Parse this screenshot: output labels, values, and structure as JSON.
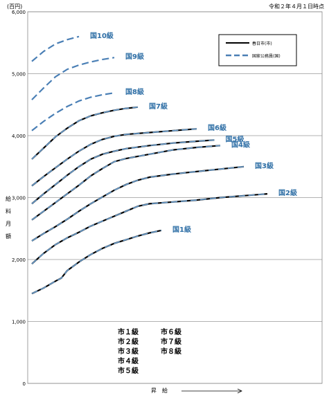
{
  "chart_data": {
    "type": "line",
    "title": "",
    "date_note": "令和２年４月１日時点",
    "unit_label": "(百円)",
    "ylabel_chars": [
      "給",
      "料",
      "月",
      "額"
    ],
    "xlabel": "昇　給",
    "ylim": [
      0,
      6000
    ],
    "yticks": [
      "0",
      "1,000",
      "2,000",
      "3,000",
      "4,000",
      "5,000",
      "6,000"
    ],
    "grid": true,
    "legend": {
      "placement": "top-right",
      "entries": [
        {
          "label": "春日市(市)",
          "style": "solid",
          "color": "#000000"
        },
        {
          "label": "国家公務員(国)",
          "style": "dashed",
          "color": "#4a7fb5"
        }
      ]
    },
    "kasuga_grades_col1": [
      "市１級",
      "市２級",
      "市３級",
      "市４級",
      "市５級"
    ],
    "kasuga_grades_col2": [
      "市６級",
      "市７級",
      "市８級"
    ],
    "series": [
      {
        "name": "国1級",
        "solid": true,
        "points": [
          [
            0,
            1450
          ],
          [
            10,
            1540
          ],
          [
            20,
            1650
          ],
          [
            25,
            1700
          ],
          [
            30,
            1820
          ],
          [
            40,
            1960
          ],
          [
            50,
            2080
          ],
          [
            60,
            2180
          ],
          [
            70,
            2260
          ],
          [
            80,
            2320
          ],
          [
            90,
            2380
          ],
          [
            100,
            2430
          ],
          [
            110,
            2470
          ]
        ]
      },
      {
        "name": "国2級",
        "solid": true,
        "points": [
          [
            0,
            1930
          ],
          [
            10,
            2100
          ],
          [
            20,
            2240
          ],
          [
            30,
            2350
          ],
          [
            40,
            2440
          ],
          [
            50,
            2540
          ],
          [
            60,
            2620
          ],
          [
            70,
            2700
          ],
          [
            80,
            2780
          ],
          [
            90,
            2860
          ],
          [
            100,
            2900
          ],
          [
            120,
            2930
          ],
          [
            140,
            2960
          ],
          [
            160,
            3000
          ],
          [
            180,
            3030
          ],
          [
            200,
            3060
          ]
        ]
      },
      {
        "name": "国3級",
        "solid": true,
        "points": [
          [
            0,
            2300
          ],
          [
            10,
            2420
          ],
          [
            20,
            2530
          ],
          [
            30,
            2650
          ],
          [
            40,
            2780
          ],
          [
            50,
            2900
          ],
          [
            60,
            3010
          ],
          [
            70,
            3120
          ],
          [
            80,
            3210
          ],
          [
            90,
            3280
          ],
          [
            100,
            3330
          ],
          [
            120,
            3380
          ],
          [
            140,
            3420
          ],
          [
            160,
            3460
          ],
          [
            180,
            3500
          ]
        ]
      },
      {
        "name": "国4級",
        "solid": true,
        "points": [
          [
            0,
            2640
          ],
          [
            10,
            2780
          ],
          [
            20,
            2920
          ],
          [
            30,
            3060
          ],
          [
            40,
            3200
          ],
          [
            50,
            3350
          ],
          [
            60,
            3470
          ],
          [
            70,
            3580
          ],
          [
            80,
            3630
          ],
          [
            100,
            3700
          ],
          [
            120,
            3770
          ],
          [
            140,
            3810
          ],
          [
            160,
            3840
          ]
        ]
      },
      {
        "name": "国5級",
        "solid": true,
        "points": [
          [
            0,
            2900
          ],
          [
            10,
            3060
          ],
          [
            20,
            3210
          ],
          [
            30,
            3360
          ],
          [
            40,
            3500
          ],
          [
            50,
            3620
          ],
          [
            60,
            3700
          ],
          [
            70,
            3750
          ],
          [
            80,
            3790
          ],
          [
            100,
            3840
          ],
          [
            120,
            3880
          ],
          [
            140,
            3910
          ],
          [
            155,
            3930
          ]
        ]
      },
      {
        "name": "国6級",
        "solid": true,
        "points": [
          [
            0,
            3190
          ],
          [
            10,
            3340
          ],
          [
            20,
            3480
          ],
          [
            30,
            3620
          ],
          [
            40,
            3750
          ],
          [
            50,
            3860
          ],
          [
            60,
            3940
          ],
          [
            70,
            3990
          ],
          [
            80,
            4020
          ],
          [
            100,
            4050
          ],
          [
            120,
            4080
          ],
          [
            140,
            4110
          ]
        ]
      },
      {
        "name": "国7級",
        "solid": true,
        "points": [
          [
            0,
            3620
          ],
          [
            10,
            3800
          ],
          [
            20,
            3980
          ],
          [
            30,
            4120
          ],
          [
            40,
            4240
          ],
          [
            50,
            4320
          ],
          [
            60,
            4370
          ],
          [
            70,
            4410
          ],
          [
            80,
            4440
          ],
          [
            90,
            4460
          ]
        ]
      },
      {
        "name": "国8級",
        "solid": false,
        "points": [
          [
            0,
            4080
          ],
          [
            10,
            4230
          ],
          [
            20,
            4360
          ],
          [
            30,
            4470
          ],
          [
            40,
            4560
          ],
          [
            50,
            4620
          ],
          [
            60,
            4660
          ],
          [
            70,
            4690
          ]
        ]
      },
      {
        "name": "国9級",
        "solid": false,
        "points": [
          [
            0,
            4580
          ],
          [
            10,
            4770
          ],
          [
            20,
            4950
          ],
          [
            30,
            5070
          ],
          [
            40,
            5140
          ],
          [
            50,
            5190
          ],
          [
            60,
            5230
          ],
          [
            70,
            5260
          ]
        ]
      },
      {
        "name": "国10級",
        "solid": false,
        "points": [
          [
            0,
            5200
          ],
          [
            10,
            5360
          ],
          [
            20,
            5480
          ],
          [
            30,
            5550
          ],
          [
            40,
            5600
          ]
        ]
      }
    ]
  }
}
